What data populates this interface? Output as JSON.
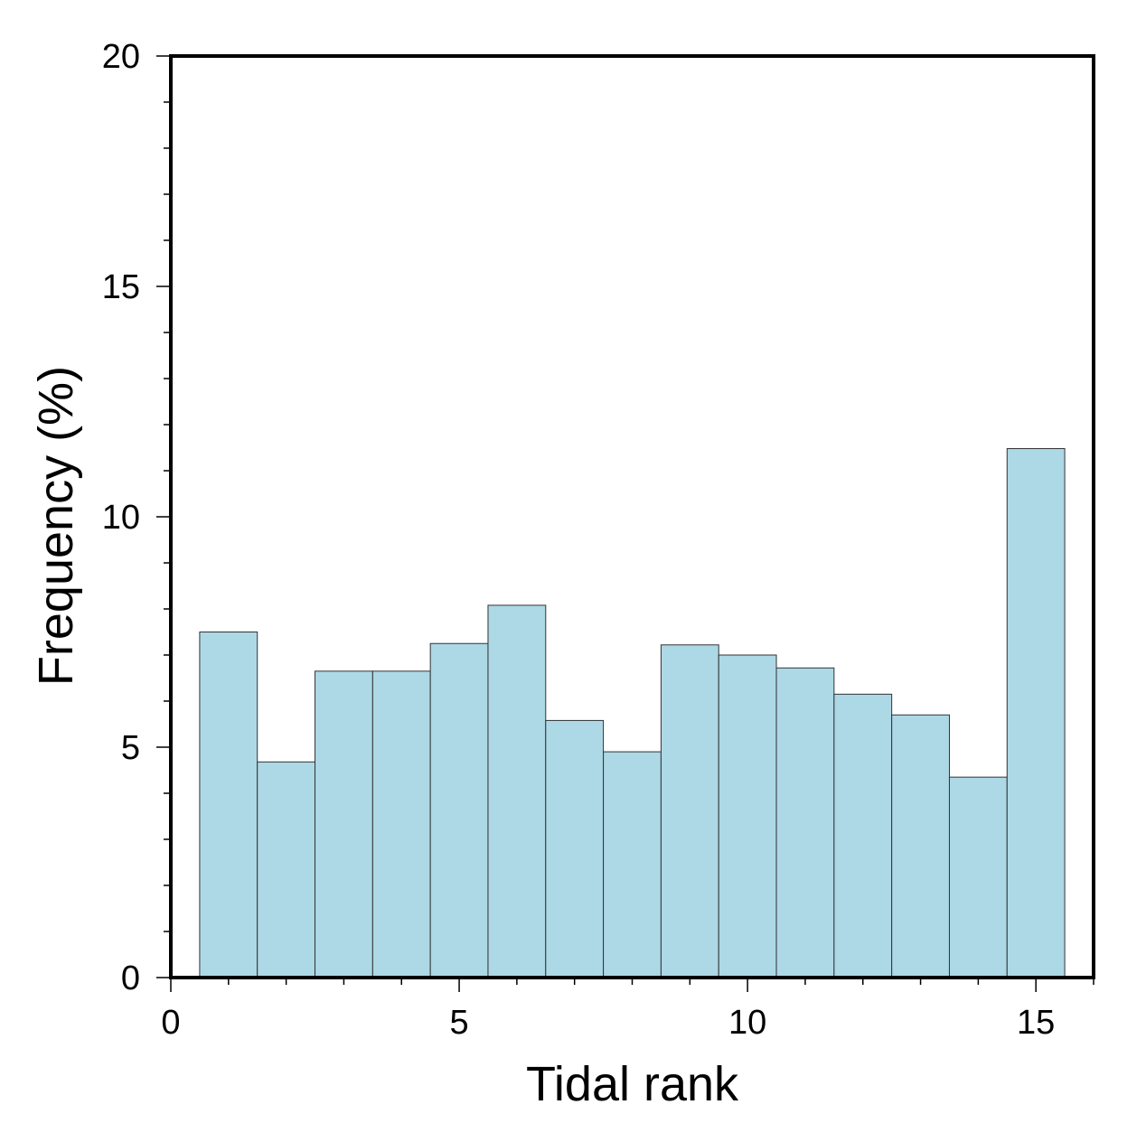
{
  "chart_data": {
    "type": "bar",
    "title": "",
    "xlabel": "Tidal rank",
    "ylabel": "Frequency (%)",
    "x": [
      1,
      2,
      3,
      4,
      5,
      6,
      7,
      8,
      9,
      10,
      11,
      12,
      13,
      14,
      15
    ],
    "values": [
      7.5,
      4.68,
      6.65,
      6.65,
      7.25,
      8.08,
      5.58,
      4.9,
      7.22,
      7.0,
      6.72,
      6.15,
      5.7,
      4.35,
      11.48
    ],
    "bin_width": 1,
    "xlim": [
      0,
      16
    ],
    "ylim": [
      0,
      20
    ],
    "x_ticks": [
      0,
      5,
      10,
      15
    ],
    "x_minor_step": 1,
    "y_ticks": [
      0,
      5,
      10,
      15,
      20
    ],
    "y_minor_step": 1,
    "grid": false,
    "bar_color": "#add8e6",
    "bar_edge_color": "#333333"
  }
}
